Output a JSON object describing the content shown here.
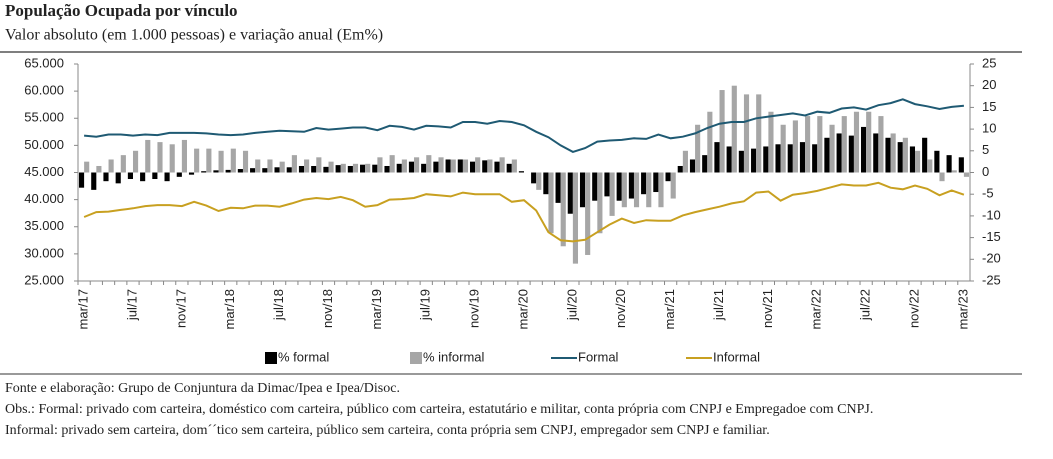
{
  "chart_data": {
    "type": "bar_line",
    "title": "População Ocupada por vínculo",
    "subtitle": "Valor absoluto (em 1.000 pessoas) e variação anual (Em%)",
    "categories": [
      "mar/17",
      null,
      null,
      null,
      "jul/17",
      null,
      null,
      null,
      "nov/17",
      null,
      null,
      null,
      "mar/18",
      null,
      null,
      null,
      "jul/18",
      null,
      null,
      null,
      "nov/18",
      null,
      null,
      null,
      "mar/19",
      null,
      null,
      null,
      "jul/19",
      null,
      null,
      null,
      "nov/19",
      null,
      null,
      null,
      "mar/20",
      null,
      null,
      null,
      "jul/20",
      null,
      null,
      null,
      "nov/20",
      null,
      null,
      null,
      "mar/21",
      null,
      null,
      null,
      "jul/21",
      null,
      null,
      null,
      "nov/21",
      null,
      null,
      null,
      "mar/22",
      null,
      null,
      null,
      "jul/22",
      null,
      null,
      null,
      "nov/22",
      null,
      null,
      null,
      "mar/23"
    ],
    "series": [
      {
        "name": "% formal",
        "color": "#000000",
        "axis": "y2",
        "kind": "bar",
        "values": [
          -3.5,
          -4,
          -2,
          -2.5,
          -1.5,
          -2,
          -1.5,
          -2,
          -1,
          -0.5,
          0.3,
          0.5,
          0.6,
          0.8,
          1,
          1,
          1.2,
          1.2,
          1.5,
          1.5,
          1.3,
          1.7,
          1.5,
          1.8,
          1.8,
          1.5,
          2,
          2.5,
          2,
          2.5,
          3,
          3,
          2.5,
          2.8,
          2.5,
          2,
          0.3,
          -2.5,
          -5,
          -7,
          -9.5,
          -8,
          -6.5,
          -5.5,
          -6.5,
          -6,
          -5,
          -4.5,
          -2,
          1.5,
          3,
          4,
          7,
          6,
          5,
          5.5,
          6,
          6.5,
          6.5,
          7,
          6.5,
          8,
          9,
          8.5,
          10.5,
          9,
          8,
          7,
          6,
          8,
          5,
          4,
          3.5
        ]
      },
      {
        "name": "% informal",
        "color": "#a6a6a6",
        "axis": "y2",
        "kind": "bar",
        "values": [
          2.5,
          1.5,
          3,
          4,
          5,
          7.5,
          7,
          6.5,
          7.5,
          5.5,
          5.5,
          5,
          5.5,
          5,
          3,
          3,
          2.5,
          4,
          3,
          3.5,
          2.5,
          2,
          2,
          2,
          3.5,
          4,
          3,
          3.5,
          4,
          3.5,
          3,
          3,
          3.5,
          3,
          3.5,
          3,
          0,
          -4,
          -14,
          -17,
          -21,
          -19,
          -14,
          -10,
          -8,
          -8,
          -8,
          -8,
          -6,
          5,
          11,
          14,
          19,
          20,
          18,
          18,
          14,
          11,
          12,
          13,
          13,
          11,
          13,
          14,
          14,
          13,
          9,
          8,
          5,
          3,
          -2,
          0.5,
          -1
        ]
      },
      {
        "name": "Formal",
        "color": "#1f5a73",
        "kind": "line",
        "values": [
          51800,
          51600,
          52000,
          52000,
          51800,
          52000,
          51900,
          52300,
          52300,
          52300,
          52200,
          52000,
          51900,
          52000,
          52300,
          52500,
          52700,
          52600,
          52500,
          53200,
          52900,
          53100,
          53300,
          53300,
          52800,
          53600,
          53400,
          52900,
          53600,
          53500,
          53300,
          54300,
          54300,
          54000,
          54500,
          54300,
          53700,
          52500,
          51500,
          50000,
          48800,
          49500,
          50700,
          50900,
          51000,
          51300,
          51200,
          52000,
          51300,
          51600,
          52200,
          53200,
          54000,
          54300,
          54300,
          55000,
          55300,
          55600,
          55900,
          55500,
          56200,
          56000,
          56800,
          57000,
          56600,
          57400,
          57800,
          58500,
          57600,
          57200,
          56700,
          57100,
          57300
        ]
      },
      {
        "name": "Informal",
        "color": "#c8a020",
        "kind": "line",
        "values": [
          36800,
          37700,
          37800,
          38100,
          38400,
          38800,
          39000,
          39000,
          38800,
          39600,
          38900,
          37900,
          38500,
          38400,
          38900,
          38900,
          38700,
          39300,
          40000,
          40300,
          40100,
          40500,
          39900,
          38700,
          39000,
          40000,
          40100,
          40300,
          41000,
          40800,
          40600,
          41300,
          41000,
          41000,
          41000,
          39600,
          39900,
          38000,
          34000,
          32500,
          32300,
          32600,
          34000,
          35400,
          36500,
          35700,
          36200,
          36100,
          36100,
          37100,
          37700,
          38200,
          38700,
          39300,
          39700,
          41300,
          41500,
          39800,
          40900,
          41200,
          41600,
          42200,
          42800,
          42600,
          42600,
          43100,
          42200,
          41900,
          42600,
          42000,
          40800,
          41700,
          40900
        ]
      }
    ],
    "ylim": [
      25000,
      65000
    ],
    "yticks": [
      {
        "value": 65000,
        "label": "65.000"
      },
      {
        "value": 60000,
        "label": "60.000"
      },
      {
        "value": 55000,
        "label": "55.000"
      },
      {
        "value": 50000,
        "label": "50.000"
      },
      {
        "value": 45000,
        "label": "45.000"
      },
      {
        "value": 40000,
        "label": "40.000"
      },
      {
        "value": 35000,
        "label": "35.000"
      },
      {
        "value": 30000,
        "label": "30.000"
      },
      {
        "value": 25000,
        "label": "25.000"
      }
    ],
    "y2lim": [
      -25,
      25
    ],
    "y2ticks": [
      25,
      20,
      15,
      10,
      5,
      0,
      -5,
      -10,
      -15,
      -20,
      -25
    ],
    "notes": [
      "Fonte e elaboração: Grupo de Conjuntura da Dimac/Ipea e Ipea/Disoc.",
      "Obs.: Formal: privado com carteira, doméstico com carteira, público com carteira, estatutário e militar, conta própria com CNPJ e Empregadoe com CNPJ.",
      "Informal: privado sem carteira, dom´´tico sem carteira, público sem carteira, conta própria sem CNPJ, empregador sem CNPJ e familiar."
    ]
  }
}
